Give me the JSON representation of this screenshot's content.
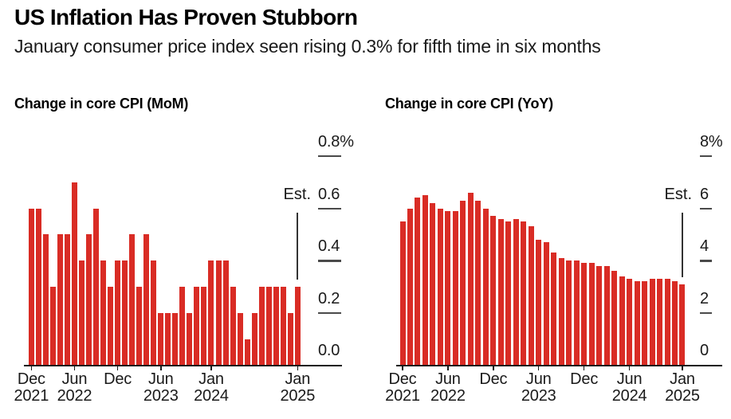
{
  "header": {
    "title": "US Inflation Has Proven Stubborn",
    "subtitle": "January consumer price index seen rising 0.3% for fifth time in six months"
  },
  "colors": {
    "bar": "#d92c25",
    "axis": "#1a1a1a",
    "tick": "#4a4a4a",
    "annotation_line": "#333333"
  },
  "chart_data": [
    {
      "type": "bar",
      "title": "Change in core CPI (MoM)",
      "unit": "%",
      "grid": false,
      "legend": false,
      "ylim": [
        0,
        0.8
      ],
      "categories": [
        "Dec 2021",
        "Jan 2022",
        "Feb 2022",
        "Mar 2022",
        "Apr 2022",
        "May 2022",
        "Jun 2022",
        "Jul 2022",
        "Aug 2022",
        "Sep 2022",
        "Oct 2022",
        "Nov 2022",
        "Dec 2022",
        "Jan 2023",
        "Feb 2023",
        "Mar 2023",
        "Apr 2023",
        "May 2023",
        "Jun 2023",
        "Jul 2023",
        "Aug 2023",
        "Sep 2023",
        "Oct 2023",
        "Nov 2023",
        "Dec 2023",
        "Jan 2024",
        "Feb 2024",
        "Mar 2024",
        "Apr 2024",
        "May 2024",
        "Jun 2024",
        "Jul 2024",
        "Aug 2024",
        "Sep 2024",
        "Oct 2024",
        "Nov 2024",
        "Dec 2024",
        "Jan 2025"
      ],
      "values": [
        0.6,
        0.6,
        0.5,
        0.3,
        0.5,
        0.5,
        0.7,
        0.4,
        0.5,
        0.6,
        0.4,
        0.3,
        0.4,
        0.4,
        0.5,
        0.3,
        0.5,
        0.4,
        0.2,
        0.2,
        0.2,
        0.3,
        0.2,
        0.3,
        0.3,
        0.4,
        0.4,
        0.4,
        0.3,
        0.2,
        0.1,
        0.2,
        0.3,
        0.3,
        0.3,
        0.3,
        0.2,
        0.3
      ],
      "yticks": [
        {
          "value": 0.8,
          "label": "0.8%"
        },
        {
          "value": 0.6,
          "label": "0.6"
        },
        {
          "value": 0.4,
          "label": "0.4"
        },
        {
          "value": 0.2,
          "label": "0.2"
        },
        {
          "value": 0,
          "label": "0.0"
        }
      ],
      "xticks": [
        {
          "index": 0,
          "line1": "Dec",
          "line2": "2021"
        },
        {
          "index": 6,
          "line1": "Jun",
          "line2": "2022"
        },
        {
          "index": 12,
          "line1": "Dec",
          "line2": ""
        },
        {
          "index": 18,
          "line1": "Jun",
          "line2": "2023"
        },
        {
          "index": 25,
          "line1": "Jan",
          "line2": "2024"
        },
        {
          "index": 37,
          "line1": "Jan",
          "line2": "2025"
        }
      ],
      "annotation": {
        "label": "Est.",
        "applies_to": "Jan 2025",
        "value": 0.3
      }
    },
    {
      "type": "bar",
      "title": "Change in core CPI (YoY)",
      "unit": "%",
      "grid": false,
      "legend": false,
      "ylim": [
        0,
        8
      ],
      "categories": [
        "Dec 2021",
        "Jan 2022",
        "Feb 2022",
        "Mar 2022",
        "Apr 2022",
        "May 2022",
        "Jun 2022",
        "Jul 2022",
        "Aug 2022",
        "Sep 2022",
        "Oct 2022",
        "Nov 2022",
        "Dec 2022",
        "Jan 2023",
        "Feb 2023",
        "Mar 2023",
        "Apr 2023",
        "May 2023",
        "Jun 2023",
        "Jul 2023",
        "Aug 2023",
        "Sep 2023",
        "Oct 2023",
        "Nov 2023",
        "Dec 2023",
        "Jan 2024",
        "Feb 2024",
        "Mar 2024",
        "Apr 2024",
        "May 2024",
        "Jun 2024",
        "Jul 2024",
        "Aug 2024",
        "Sep 2024",
        "Oct 2024",
        "Nov 2024",
        "Dec 2024",
        "Jan 2025"
      ],
      "values": [
        5.5,
        6.0,
        6.4,
        6.5,
        6.2,
        6.0,
        5.9,
        5.9,
        6.3,
        6.6,
        6.3,
        6.0,
        5.7,
        5.6,
        5.5,
        5.6,
        5.5,
        5.3,
        4.8,
        4.7,
        4.3,
        4.1,
        4.0,
        4.0,
        3.9,
        3.9,
        3.8,
        3.8,
        3.6,
        3.4,
        3.3,
        3.2,
        3.2,
        3.3,
        3.3,
        3.3,
        3.2,
        3.1
      ],
      "yticks": [
        {
          "value": 8,
          "label": "8%"
        },
        {
          "value": 6,
          "label": "6"
        },
        {
          "value": 4,
          "label": "4"
        },
        {
          "value": 2,
          "label": "2"
        },
        {
          "value": 0,
          "label": "0"
        }
      ],
      "xticks": [
        {
          "index": 0,
          "line1": "Dec",
          "line2": "2021"
        },
        {
          "index": 6,
          "line1": "Jun",
          "line2": "2022"
        },
        {
          "index": 12,
          "line1": "Dec",
          "line2": ""
        },
        {
          "index": 18,
          "line1": "Jun",
          "line2": "2023"
        },
        {
          "index": 24,
          "line1": "Dec",
          "line2": ""
        },
        {
          "index": 30,
          "line1": "Jun",
          "line2": "2024"
        },
        {
          "index": 37,
          "line1": "Jan",
          "line2": "2025"
        }
      ],
      "annotation": {
        "label": "Est.",
        "applies_to": "Jan 2025",
        "value": 3.1
      }
    }
  ]
}
